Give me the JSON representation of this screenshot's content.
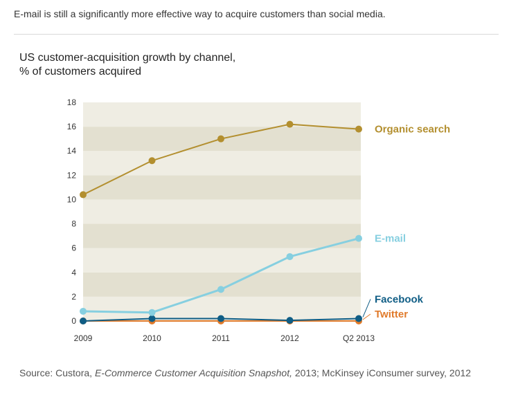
{
  "headline": "E-mail is still a significantly more effective way to acquire customers than social media.",
  "chart_data": {
    "type": "line",
    "title_lines": [
      "US customer-acquisition growth by channel,",
      "% of customers acquired"
    ],
    "categories": [
      "2009",
      "2010",
      "2011",
      "2012",
      "Q2 2013"
    ],
    "ylim": [
      0,
      18
    ],
    "yticks": [
      0,
      2,
      4,
      6,
      8,
      10,
      12,
      14,
      16,
      18
    ],
    "grid": "alternating horizontal bands",
    "legend": "labels at right end of each line",
    "series": [
      {
        "name": "Organic search",
        "color": "#b38f2f",
        "values": [
          10.4,
          13.2,
          15.0,
          16.2,
          15.8
        ]
      },
      {
        "name": "E-mail",
        "color": "#86cfe0",
        "values": [
          0.8,
          0.7,
          2.6,
          5.3,
          6.8
        ]
      },
      {
        "name": "Facebook",
        "color": "#0f5d85",
        "values": [
          0.0,
          0.2,
          0.2,
          0.05,
          0.2
        ]
      },
      {
        "name": "Twitter",
        "color": "#e07a2a",
        "values": [
          0.0,
          0.0,
          0.0,
          0.0,
          0.0
        ]
      }
    ],
    "band_colors": [
      "#efede3",
      "#e3e0d0"
    ]
  },
  "source": {
    "prefix": "Source: Custora, ",
    "italic": "E-Commerce Customer Acquisition Snapshot,",
    "suffix": " 2013; McKinsey iConsumer survey, 2012"
  }
}
